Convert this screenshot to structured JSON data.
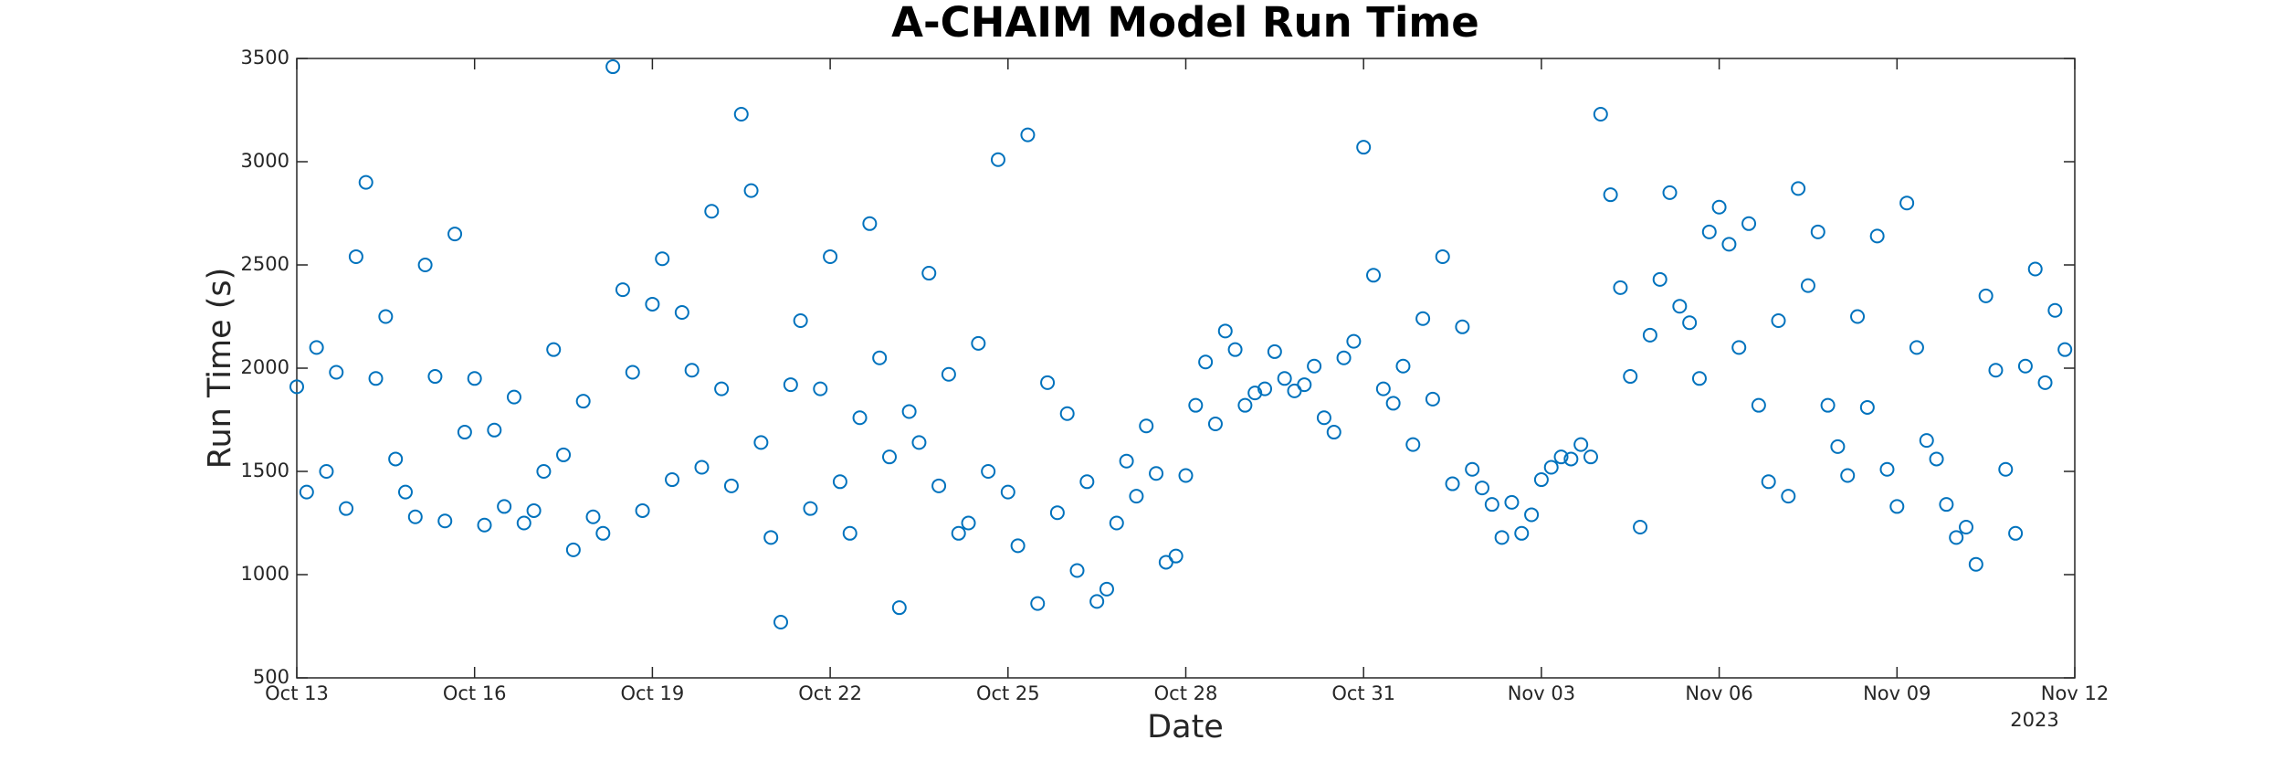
{
  "chart_data": {
    "type": "scatter",
    "title": "A-CHAIM Model Run Time",
    "x_label": "Date",
    "y_label": "Run Time (s)",
    "year_label": "2023",
    "series": [
      {
        "name": "Run Time",
        "color": "#0072bd",
        "x": [
          "2023-10-13T00:00",
          "2023-10-13T04:00",
          "2023-10-13T08:00",
          "2023-10-13T12:00",
          "2023-10-13T16:00",
          "2023-10-13T20:00",
          "2023-10-14T00:00",
          "2023-10-14T04:00",
          "2023-10-14T08:00",
          "2023-10-14T12:00",
          "2023-10-14T16:00",
          "2023-10-14T20:00",
          "2023-10-15T00:00",
          "2023-10-15T04:00",
          "2023-10-15T08:00",
          "2023-10-15T12:00",
          "2023-10-15T16:00",
          "2023-10-15T20:00",
          "2023-10-16T00:00",
          "2023-10-16T04:00",
          "2023-10-16T08:00",
          "2023-10-16T12:00",
          "2023-10-16T16:00",
          "2023-10-16T20:00",
          "2023-10-17T00:00",
          "2023-10-17T04:00",
          "2023-10-17T08:00",
          "2023-10-17T12:00",
          "2023-10-17T16:00",
          "2023-10-17T20:00",
          "2023-10-18T00:00",
          "2023-10-18T04:00",
          "2023-10-18T08:00",
          "2023-10-18T12:00",
          "2023-10-18T16:00",
          "2023-10-18T20:00",
          "2023-10-19T00:00",
          "2023-10-19T04:00",
          "2023-10-19T08:00",
          "2023-10-19T12:00",
          "2023-10-19T16:00",
          "2023-10-19T20:00",
          "2023-10-20T00:00",
          "2023-10-20T04:00",
          "2023-10-20T08:00",
          "2023-10-20T12:00",
          "2023-10-20T16:00",
          "2023-10-20T20:00",
          "2023-10-21T00:00",
          "2023-10-21T04:00",
          "2023-10-21T08:00",
          "2023-10-21T12:00",
          "2023-10-21T16:00",
          "2023-10-21T20:00",
          "2023-10-22T00:00",
          "2023-10-22T04:00",
          "2023-10-22T08:00",
          "2023-10-22T12:00",
          "2023-10-22T16:00",
          "2023-10-22T20:00",
          "2023-10-23T00:00",
          "2023-10-23T04:00",
          "2023-10-23T08:00",
          "2023-10-23T12:00",
          "2023-10-23T16:00",
          "2023-10-23T20:00",
          "2023-10-24T00:00",
          "2023-10-24T04:00",
          "2023-10-24T08:00",
          "2023-10-24T12:00",
          "2023-10-24T16:00",
          "2023-10-24T20:00",
          "2023-10-25T00:00",
          "2023-10-25T04:00",
          "2023-10-25T08:00",
          "2023-10-25T12:00",
          "2023-10-25T16:00",
          "2023-10-25T20:00",
          "2023-10-26T00:00",
          "2023-10-26T04:00",
          "2023-10-26T08:00",
          "2023-10-26T12:00",
          "2023-10-26T16:00",
          "2023-10-26T20:00",
          "2023-10-27T00:00",
          "2023-10-27T04:00",
          "2023-10-27T08:00",
          "2023-10-27T12:00",
          "2023-10-27T16:00",
          "2023-10-27T20:00",
          "2023-10-28T00:00",
          "2023-10-28T04:00",
          "2023-10-28T08:00",
          "2023-10-28T12:00",
          "2023-10-28T16:00",
          "2023-10-28T20:00",
          "2023-10-29T00:00",
          "2023-10-29T04:00",
          "2023-10-29T08:00",
          "2023-10-29T12:00",
          "2023-10-29T16:00",
          "2023-10-29T20:00",
          "2023-10-30T00:00",
          "2023-10-30T04:00",
          "2023-10-30T08:00",
          "2023-10-30T12:00",
          "2023-10-30T16:00",
          "2023-10-30T20:00",
          "2023-10-31T00:00",
          "2023-10-31T04:00",
          "2023-10-31T08:00",
          "2023-10-31T12:00",
          "2023-10-31T16:00",
          "2023-10-31T20:00",
          "2023-11-01T00:00",
          "2023-11-01T04:00",
          "2023-11-01T08:00",
          "2023-11-01T12:00",
          "2023-11-01T16:00",
          "2023-11-01T20:00",
          "2023-11-02T00:00",
          "2023-11-02T04:00",
          "2023-11-02T08:00",
          "2023-11-02T12:00",
          "2023-11-02T16:00",
          "2023-11-02T20:00",
          "2023-11-03T00:00",
          "2023-11-03T04:00",
          "2023-11-03T08:00",
          "2023-11-03T12:00",
          "2023-11-03T16:00",
          "2023-11-03T20:00",
          "2023-11-04T00:00",
          "2023-11-04T04:00",
          "2023-11-04T08:00",
          "2023-11-04T12:00",
          "2023-11-04T16:00",
          "2023-11-04T20:00",
          "2023-11-05T00:00",
          "2023-11-05T04:00",
          "2023-11-05T08:00",
          "2023-11-05T12:00",
          "2023-11-05T16:00",
          "2023-11-05T20:00",
          "2023-11-06T00:00",
          "2023-11-06T04:00",
          "2023-11-06T08:00",
          "2023-11-06T12:00",
          "2023-11-06T16:00",
          "2023-11-06T20:00",
          "2023-11-07T00:00",
          "2023-11-07T04:00",
          "2023-11-07T08:00",
          "2023-11-07T12:00",
          "2023-11-07T16:00",
          "2023-11-07T20:00",
          "2023-11-08T00:00",
          "2023-11-08T04:00",
          "2023-11-08T08:00",
          "2023-11-08T12:00",
          "2023-11-08T16:00",
          "2023-11-08T20:00",
          "2023-11-09T00:00",
          "2023-11-09T04:00",
          "2023-11-09T08:00",
          "2023-11-09T12:00",
          "2023-11-09T16:00",
          "2023-11-09T20:00",
          "2023-11-10T00:00",
          "2023-11-10T04:00",
          "2023-11-10T08:00",
          "2023-11-10T12:00",
          "2023-11-10T16:00",
          "2023-11-10T20:00",
          "2023-11-11T00:00",
          "2023-11-11T04:00",
          "2023-11-11T08:00",
          "2023-11-11T12:00",
          "2023-11-11T16:00",
          "2023-11-11T20:00"
        ],
        "values": [
          1910,
          1400,
          2100,
          1500,
          1980,
          1320,
          2540,
          2900,
          1950,
          2250,
          1560,
          1400,
          1280,
          2500,
          1960,
          1260,
          2650,
          1690,
          1950,
          1240,
          1700,
          1330,
          1860,
          1250,
          1310,
          1500,
          2090,
          1580,
          1120,
          1840,
          1280,
          1200,
          3460,
          2380,
          1980,
          1310,
          2310,
          2530,
          1460,
          2270,
          1990,
          1520,
          2760,
          1900,
          1430,
          3230,
          2860,
          1640,
          1180,
          770,
          1920,
          2230,
          1320,
          1900,
          2540,
          1450,
          1200,
          1760,
          2700,
          2050,
          1570,
          840,
          1790,
          1640,
          2460,
          1430,
          1970,
          1200,
          1250,
          2120,
          1500,
          3010,
          1400,
          1140,
          3130,
          860,
          1930,
          1300,
          1780,
          1020,
          1450,
          870,
          930,
          1250,
          1550,
          1380,
          1720,
          1490,
          1060,
          1090,
          1480,
          1820,
          2030,
          1730,
          2180,
          2090,
          1820,
          1880,
          1900,
          2080,
          1950,
          1890,
          1920,
          2010,
          1760,
          1690,
          2050,
          2130,
          3070,
          2450,
          1900,
          1830,
          2010,
          1630,
          2240,
          1850,
          2540,
          1440,
          2200,
          1510,
          1420,
          1340,
          1180,
          1350,
          1200,
          1290,
          1460,
          1520,
          1570,
          1560,
          1630,
          1570,
          3230,
          2840,
          2390,
          1960,
          1230,
          2160,
          2430,
          2850,
          2300,
          2220,
          1950,
          2660,
          2780,
          2600,
          2100,
          2700,
          1820,
          1450,
          2230,
          1380,
          2870,
          2400,
          2660,
          1820,
          1620,
          1480,
          2250,
          1810,
          2640,
          1510,
          1330,
          2800,
          2100,
          1650,
          1560,
          1340,
          1180,
          1230,
          1050,
          2350,
          1990,
          1510,
          1200,
          2010,
          2480,
          1930,
          2280,
          2090
        ]
      }
    ],
    "xlim": [
      "2023-10-13",
      "2023-11-12"
    ],
    "xticks": [
      {
        "value": "2023-10-13",
        "label": "Oct 13"
      },
      {
        "value": "2023-10-16",
        "label": "Oct 16"
      },
      {
        "value": "2023-10-19",
        "label": "Oct 19"
      },
      {
        "value": "2023-10-22",
        "label": "Oct 22"
      },
      {
        "value": "2023-10-25",
        "label": "Oct 25"
      },
      {
        "value": "2023-10-28",
        "label": "Oct 28"
      },
      {
        "value": "2023-10-31",
        "label": "Oct 31"
      },
      {
        "value": "2023-11-03",
        "label": "Nov 03"
      },
      {
        "value": "2023-11-06",
        "label": "Nov 06"
      },
      {
        "value": "2023-11-09",
        "label": "Nov 09"
      },
      {
        "value": "2023-11-12",
        "label": "Nov 12"
      }
    ],
    "ylim": [
      500,
      3500
    ],
    "yticks": [
      500,
      1000,
      1500,
      2000,
      2500,
      3000,
      3500
    ],
    "grid": false
  }
}
